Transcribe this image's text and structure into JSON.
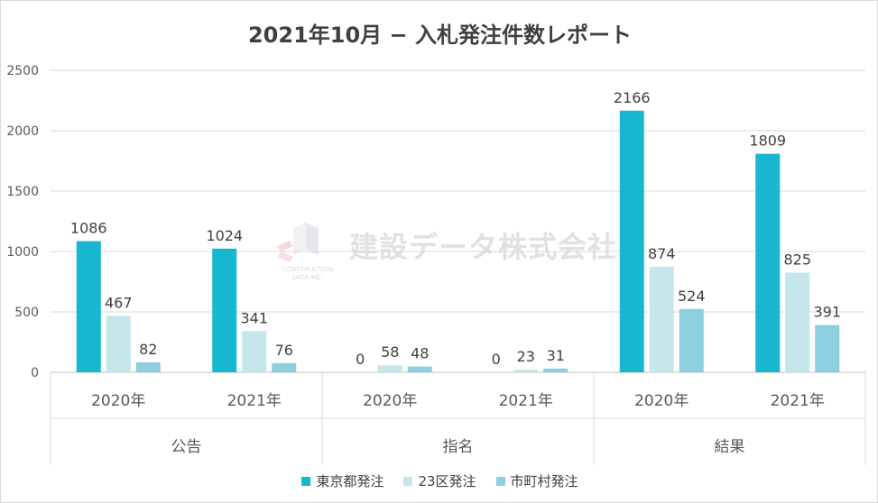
{
  "chart_data": {
    "type": "bar",
    "title": "2021年10月 − 入札発注件数レポート",
    "ylim": [
      0,
      2500
    ],
    "yticks": [
      0,
      500,
      1000,
      1500,
      2000,
      2500
    ],
    "grid": true,
    "legend_position": "bottom",
    "groups": [
      {
        "label": "公告",
        "categories": [
          "2020年",
          "2021年"
        ]
      },
      {
        "label": "指名",
        "categories": [
          "2020年",
          "2021年"
        ]
      },
      {
        "label": "結果",
        "categories": [
          "2020年",
          "2021年"
        ]
      }
    ],
    "series": [
      {
        "name": "東京都発注",
        "color": "#17b7cf",
        "values": [
          1086,
          1024,
          0,
          0,
          2166,
          1809
        ]
      },
      {
        "name": "23区発注",
        "color": "#c5e6ea",
        "values": [
          467,
          341,
          58,
          23,
          874,
          825
        ]
      },
      {
        "name": "市町村発注",
        "color": "#8dcfdf",
        "values": [
          82,
          76,
          48,
          31,
          524,
          391
        ]
      }
    ]
  },
  "watermark": {
    "text": "建設データ株式会社",
    "logo_text_line1": "CONSTRUCTION",
    "logo_text_line2": "DATA,INC.",
    "logo_icon": "construction-data-logo-icon"
  }
}
